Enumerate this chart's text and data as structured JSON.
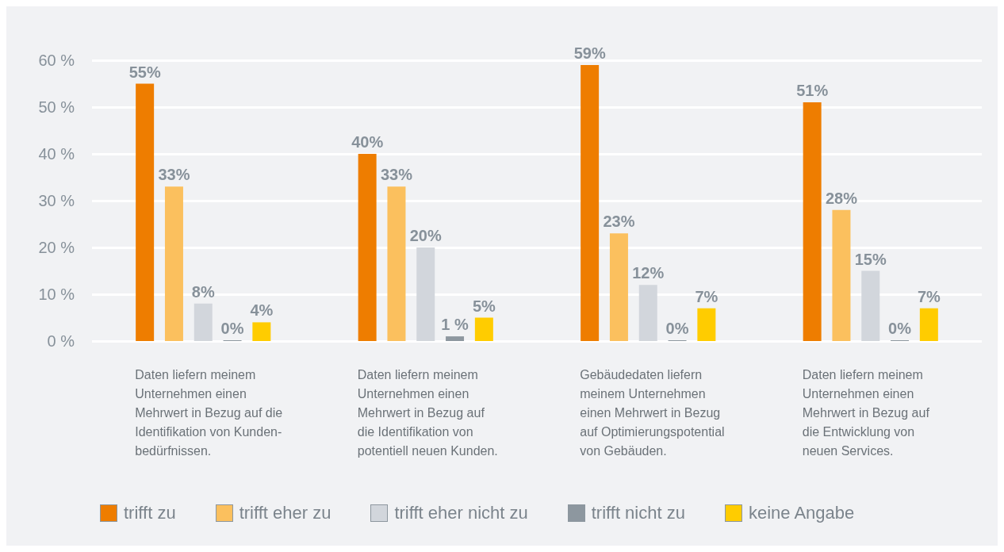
{
  "chart_data": {
    "type": "bar",
    "categories": [
      "Daten liefern meinem\nUnternehmen einen\nMehrwert in Bezug auf die\nIdentifikation von Kunden-\nbedürfnissen.",
      "Daten liefern meinem\nUnternehmen einen\nMehrwert in Bezug auf\ndie Identifikation von\npotentiell neuen Kunden.",
      "Gebäudedaten liefern\nmeinem Unternehmen\neinen Mehrwert in Bezug\nauf Optimierungspotential\nvon Gebäuden.",
      "Daten liefern meinem\nUnternehmen einen\nMehrwert in Bezug auf\ndie Entwicklung von\nneuen Services."
    ],
    "series": [
      {
        "name": "trifft zu",
        "color": "#ee7d00",
        "values": [
          55,
          40,
          59,
          51
        ],
        "value_labels": [
          "55%",
          "40%",
          "59%",
          "51%"
        ]
      },
      {
        "name": "trifft eher zu",
        "color": "#fbc05e",
        "values": [
          33,
          33,
          23,
          28
        ],
        "value_labels": [
          "33%",
          "33%",
          "23%",
          "28%"
        ]
      },
      {
        "name": "trifft eher nicht zu",
        "color": "#d2d6dc",
        "values": [
          8,
          20,
          12,
          15
        ],
        "value_labels": [
          "8%",
          "20%",
          "12%",
          "15%"
        ]
      },
      {
        "name": "trifft nicht zu",
        "color": "#8d979f",
        "values": [
          0,
          1,
          0,
          0
        ],
        "value_labels": [
          "0%",
          "1 %",
          "0%",
          "0%"
        ]
      },
      {
        "name": "keine Angabe",
        "color": "#ffcc00",
        "values": [
          4,
          5,
          7,
          7
        ],
        "value_labels": [
          "4%",
          "5%",
          "7%",
          "7%"
        ]
      }
    ],
    "ylim": [
      0,
      60
    ],
    "yticks": [
      {
        "value": 0,
        "label": "0 %"
      },
      {
        "value": 10,
        "label": "10 %"
      },
      {
        "value": 20,
        "label": "20 %"
      },
      {
        "value": 30,
        "label": "30 %"
      },
      {
        "value": 40,
        "label": "40 %"
      },
      {
        "value": 50,
        "label": "50 %"
      },
      {
        "value": 60,
        "label": "60 %"
      }
    ],
    "grid": "y",
    "legend": "bottom"
  }
}
